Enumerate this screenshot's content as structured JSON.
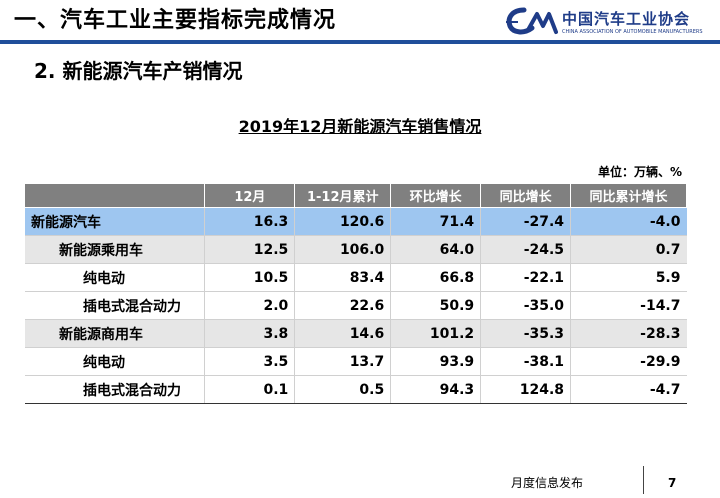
{
  "header": {
    "title": "一、汽车工业主要指标完成情况",
    "logo_text": "中国汽车工业协会",
    "logo_subtext": "CHINA ASSOCIATION OF AUTOMOBILE MANUFACTURERS",
    "brand_color": "#1f4e9a"
  },
  "subtitle": "2. 新能源汽车产销情况",
  "table": {
    "title": "2019年12月新能源汽车销售情况",
    "unit": "单位：万辆、%",
    "columns": [
      "",
      "12月",
      "1-12月累计",
      "环比增长",
      "同比增长",
      "同比累计增长"
    ],
    "rows": [
      {
        "label": "新能源汽车",
        "values": [
          "16.3",
          "120.6",
          "71.4",
          "-27.4",
          "-4.0"
        ]
      },
      {
        "label": "新能源乘用车",
        "values": [
          "12.5",
          "106.0",
          "64.0",
          "-24.5",
          "0.7"
        ]
      },
      {
        "label": "纯电动",
        "values": [
          "10.5",
          "83.4",
          "66.8",
          "-22.1",
          "5.9"
        ]
      },
      {
        "label": "插电式混合动力",
        "values": [
          "2.0",
          "22.6",
          "50.9",
          "-35.0",
          "-14.7"
        ]
      },
      {
        "label": "新能源商用车",
        "values": [
          "3.8",
          "14.6",
          "101.2",
          "-35.3",
          "-28.3"
        ]
      },
      {
        "label": "纯电动",
        "values": [
          "3.5",
          "13.7",
          "93.9",
          "-38.1",
          "-29.9"
        ]
      },
      {
        "label": "插电式混合动力",
        "values": [
          "0.1",
          "0.5",
          "94.3",
          "124.8",
          "-4.7"
        ]
      }
    ]
  },
  "footer": {
    "text": "月度信息发布",
    "page": "7"
  }
}
